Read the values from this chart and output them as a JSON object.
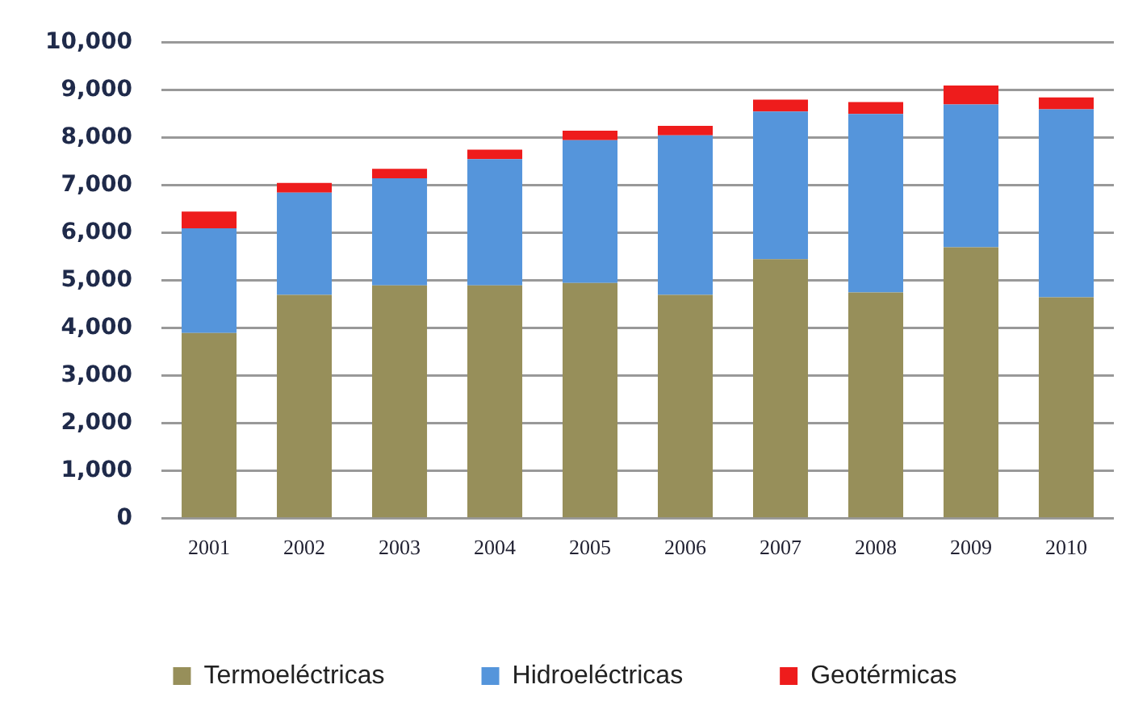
{
  "chart_data": {
    "type": "bar",
    "stacked": true,
    "categories": [
      "2001",
      "2002",
      "2003",
      "2004",
      "2005",
      "2006",
      "2007",
      "2008",
      "2009",
      "2010"
    ],
    "series": [
      {
        "name": "Termoeléctricas",
        "color": "#978f5a",
        "values": [
          3900,
          4700,
          4900,
          4900,
          4950,
          4700,
          5450,
          4750,
          5700,
          4650
        ]
      },
      {
        "name": "Hidroeléctricas",
        "color": "#5595db",
        "values": [
          2200,
          2150,
          2250,
          2650,
          3000,
          3350,
          3100,
          3750,
          3000,
          3950
        ]
      },
      {
        "name": "Geotérmicas",
        "color": "#ee1c1c",
        "values": [
          350,
          200,
          200,
          200,
          200,
          200,
          250,
          250,
          400,
          250
        ]
      }
    ],
    "ylim": [
      0,
      10000
    ],
    "yticks": [
      0,
      {
        "value": 1000,
        "label": "1,000"
      },
      {
        "value": 2000,
        "label": "2,000"
      },
      {
        "value": 3000,
        "label": "3,000"
      },
      {
        "value": 4000,
        "label": "4,000"
      },
      {
        "value": 5000,
        "label": "5,000"
      },
      {
        "value": 6000,
        "label": "6,000"
      },
      {
        "value": 7000,
        "label": "7,000"
      },
      {
        "value": 8000,
        "label": "8,000"
      },
      {
        "value": 9000,
        "label": "9,000"
      },
      {
        "value": 10000,
        "label": "10,000"
      }
    ],
    "grid": "y",
    "legend": "bottom"
  }
}
